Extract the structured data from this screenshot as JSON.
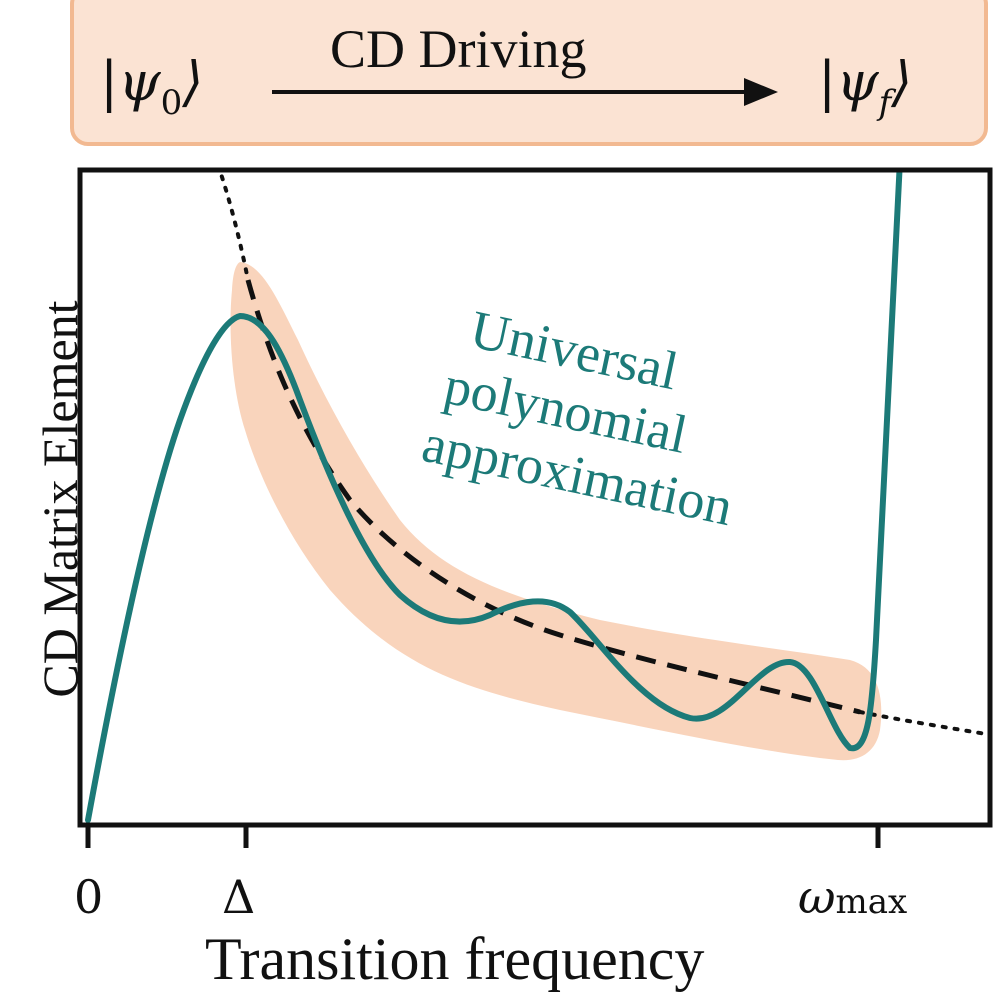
{
  "banner": {
    "initial_state": "ψ",
    "initial_subscript": "0",
    "process_label": "CD Driving",
    "final_state": "ψ",
    "final_subscript": "f"
  },
  "axes": {
    "ylabel": "CD Matrix Element",
    "xlabel": "Transition frequency",
    "ticks": {
      "zero": "0",
      "delta": "Δ",
      "omega": "ω",
      "omega_sub": "max"
    }
  },
  "annotation": {
    "lines": [
      "Universal",
      "polynomial",
      "approximation"
    ]
  },
  "colors": {
    "teal": "#1c7a78",
    "band": "#f9d4bc",
    "banner_fill": "#fbe3d3",
    "banner_border": "#f2b991"
  }
}
